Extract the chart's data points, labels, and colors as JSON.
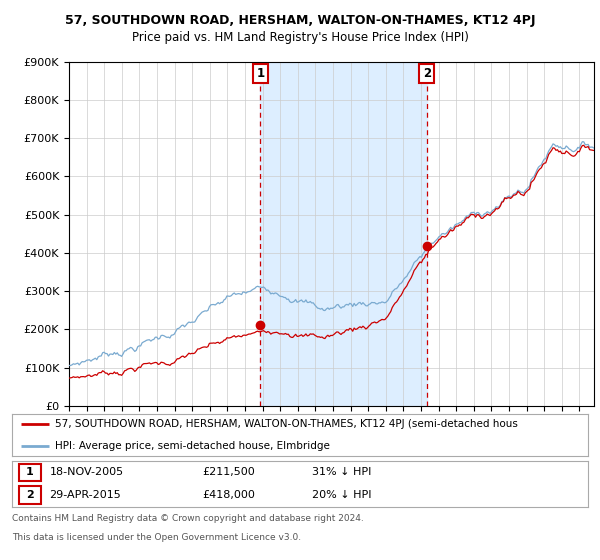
{
  "title": "57, SOUTHDOWN ROAD, HERSHAM, WALTON-ON-THAMES, KT12 4PJ",
  "subtitle": "Price paid vs. HM Land Registry's House Price Index (HPI)",
  "ylim": [
    0,
    900000
  ],
  "yticks": [
    0,
    100000,
    200000,
    300000,
    400000,
    500000,
    600000,
    700000,
    800000,
    900000
  ],
  "xlim_start": 1995.0,
  "xlim_end": 2024.83,
  "sale1_date": 2005.88,
  "sale1_price": 211500,
  "sale2_date": 2015.33,
  "sale2_price": 418000,
  "legend_property": "57, SOUTHDOWN ROAD, HERSHAM, WALTON-ON-THAMES, KT12 4PJ (semi-detached hous",
  "legend_hpi": "HPI: Average price, semi-detached house, Elmbridge",
  "footer1": "Contains HM Land Registry data © Crown copyright and database right 2024.",
  "footer2": "This data is licensed under the Open Government Licence v3.0.",
  "property_color": "#cc0000",
  "hpi_color": "#7aaad0",
  "fill_color": "#ddeeff",
  "vline_color": "#cc0000",
  "background_color": "#ffffff",
  "grid_color": "#cccccc",
  "title_fontsize": 9,
  "subtitle_fontsize": 8.5
}
